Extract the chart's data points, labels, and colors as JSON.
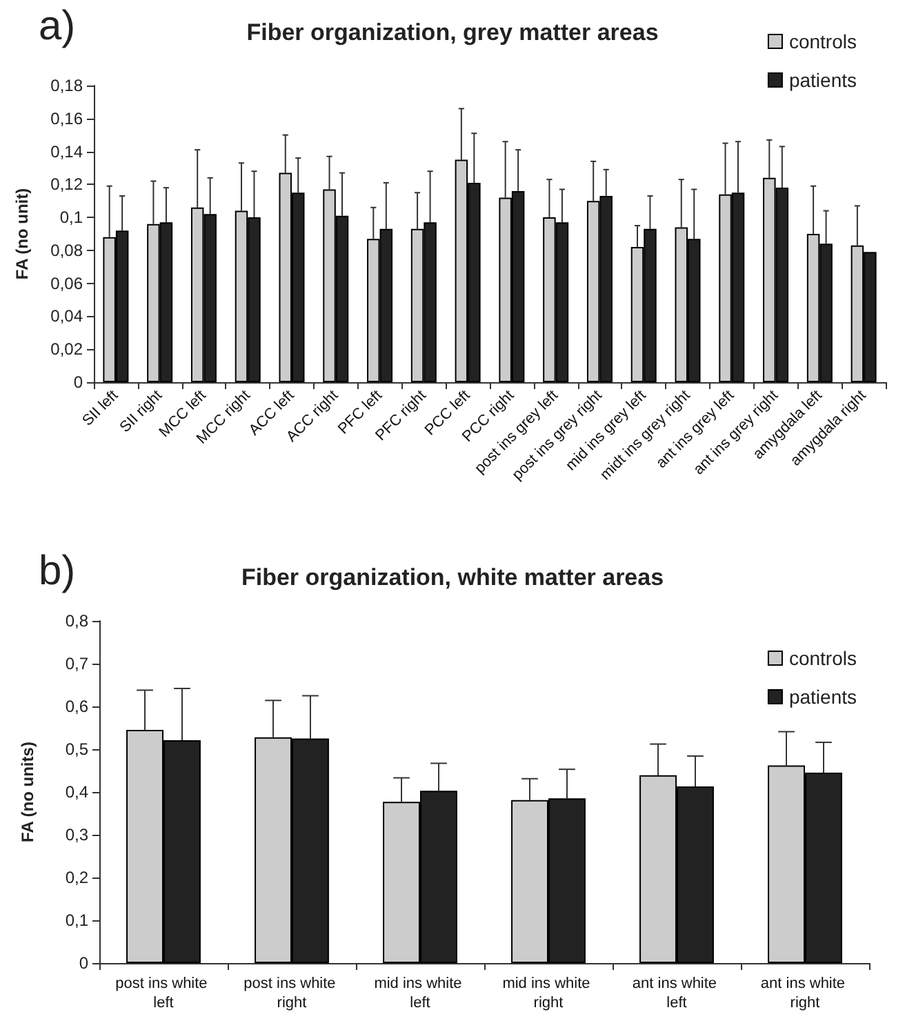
{
  "chart_data": [
    {
      "type": "bar",
      "title": "Fiber organization, grey matter areas",
      "ylabel": "FA (no unit)",
      "annotations": [
        "a)"
      ],
      "categories": [
        "SII left",
        "SII right",
        "MCC left",
        "MCC right",
        "ACC left",
        "ACC right",
        "PFC left",
        "PFC right",
        "PCC left",
        "PCC right",
        "post ins grey left",
        "post ins grey right",
        "mid ins grey left",
        "midt ins grey right",
        "ant ins grey left",
        "ant ins grey right",
        "amygdala left",
        "amygdala right"
      ],
      "series": [
        {
          "name": "controls",
          "color": "#cccccc",
          "values": [
            0.088,
            0.096,
            0.106,
            0.104,
            0.127,
            0.117,
            0.087,
            0.093,
            0.135,
            0.112,
            0.1,
            0.11,
            0.082,
            0.094,
            0.114,
            0.124,
            0.09,
            0.083
          ],
          "errors": [
            [
              0.088,
              0.119
            ],
            [
              0.096,
              0.122
            ],
            [
              0.106,
              0.141
            ],
            [
              0.104,
              0.133
            ],
            [
              0.127,
              0.15
            ],
            [
              0.117,
              0.137
            ],
            [
              0.087,
              0.106
            ],
            [
              0.093,
              0.115
            ],
            [
              0.135,
              0.166
            ],
            [
              0.112,
              0.146
            ],
            [
              0.1,
              0.123
            ],
            [
              0.11,
              0.134
            ],
            [
              0.082,
              0.095
            ],
            [
              0.094,
              0.123
            ],
            [
              0.114,
              0.145
            ],
            [
              0.124,
              0.147
            ],
            [
              0.09,
              0.119
            ],
            [
              0.083,
              0.107
            ]
          ]
        },
        {
          "name": "patients",
          "color": "#222222",
          "values": [
            0.092,
            0.097,
            0.102,
            0.1,
            0.115,
            0.101,
            0.093,
            0.097,
            0.121,
            0.116,
            0.097,
            0.113,
            0.093,
            0.087,
            0.115,
            0.118,
            0.084,
            0.079
          ],
          "errors": [
            [
              0.092,
              0.113
            ],
            [
              0.097,
              0.118
            ],
            [
              0.102,
              0.124
            ],
            [
              0.1,
              0.128
            ],
            [
              0.115,
              0.136
            ],
            [
              0.101,
              0.127
            ],
            [
              0.093,
              0.121
            ],
            [
              0.097,
              0.128
            ],
            [
              0.121,
              0.151
            ],
            [
              0.116,
              0.141
            ],
            [
              0.097,
              0.117
            ],
            [
              0.113,
              0.129
            ],
            [
              0.093,
              0.113
            ],
            [
              0.087,
              0.117
            ],
            [
              0.115,
              0.146
            ],
            [
              0.118,
              0.143
            ],
            [
              0.084,
              0.104
            ],
            null
          ]
        }
      ],
      "ylim": [
        0,
        0.18
      ],
      "yticks": [
        {
          "value": 0,
          "label": "0"
        },
        {
          "value": 0.02,
          "label": "0,02"
        },
        {
          "value": 0.04,
          "label": "0,04"
        },
        {
          "value": 0.06,
          "label": "0,06"
        },
        {
          "value": 0.08,
          "label": "0,08"
        },
        {
          "value": 0.1,
          "label": "0,1"
        },
        {
          "value": 0.12,
          "label": "0,12"
        },
        {
          "value": 0.14,
          "label": "0,14"
        },
        {
          "value": 0.16,
          "label": "0,16"
        },
        {
          "value": 0.18,
          "label": "0,18"
        }
      ],
      "grid": false,
      "legend": "top right"
    },
    {
      "type": "bar",
      "title": "Fiber organization, white matter areas",
      "ylabel": "FA (no units)",
      "annotations": [
        "b)"
      ],
      "categories": [
        "post ins white left",
        "post ins white right",
        "mid ins white left",
        "mid ins white right",
        "ant ins white left",
        "ant ins white right"
      ],
      "series": [
        {
          "name": "controls",
          "color": "#cccccc",
          "values": [
            0.545,
            0.528,
            0.377,
            0.381,
            0.439,
            0.462
          ],
          "errors": [
            [
              0.545,
              0.638
            ],
            [
              0.528,
              0.614
            ],
            [
              0.377,
              0.433
            ],
            [
              0.381,
              0.431
            ],
            [
              0.439,
              0.512
            ],
            [
              0.462,
              0.541
            ]
          ]
        },
        {
          "name": "patients",
          "color": "#222222",
          "values": [
            0.521,
            0.525,
            0.403,
            0.385,
            0.413,
            0.445
          ],
          "errors": [
            [
              0.521,
              0.642
            ],
            [
              0.525,
              0.625
            ],
            [
              0.403,
              0.467
            ],
            [
              0.385,
              0.453
            ],
            [
              0.413,
              0.484
            ],
            [
              0.445,
              0.516
            ]
          ]
        }
      ],
      "ylim": [
        0,
        0.8
      ],
      "yticks": [
        {
          "value": 0,
          "label": "0"
        },
        {
          "value": 0.1,
          "label": "0,1"
        },
        {
          "value": 0.2,
          "label": "0,2"
        },
        {
          "value": 0.3,
          "label": "0,3"
        },
        {
          "value": 0.4,
          "label": "0,4"
        },
        {
          "value": 0.5,
          "label": "0,5"
        },
        {
          "value": 0.6,
          "label": "0,6"
        },
        {
          "value": 0.7,
          "label": "0,7"
        },
        {
          "value": 0.8,
          "label": "0,8"
        }
      ],
      "grid": false,
      "legend": "top right"
    }
  ]
}
